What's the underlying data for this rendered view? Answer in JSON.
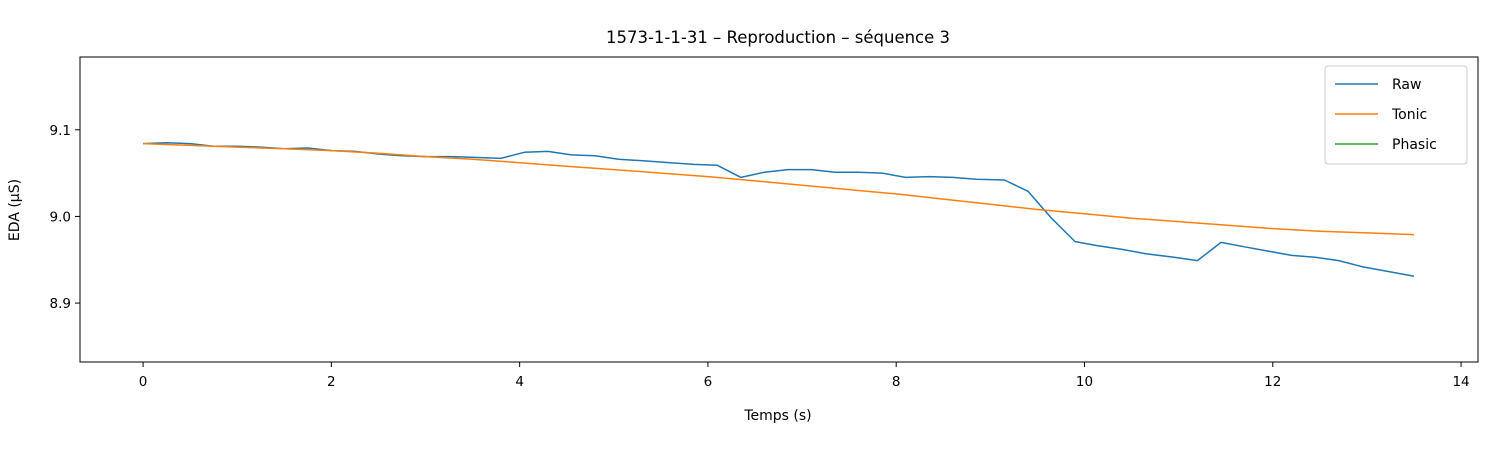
{
  "chart_data": {
    "type": "line",
    "title": "1573-1-1-31 – Reproduction – séquence 3",
    "xlabel": "Temps (s)",
    "ylabel": "EDA (µS)",
    "xlim": [
      -0.67,
      14.18
    ],
    "ylim": [
      8.832,
      9.184
    ],
    "xticks": [
      0,
      2,
      4,
      6,
      8,
      10,
      12,
      14
    ],
    "yticks": [
      8.9,
      9.0,
      9.1
    ],
    "ytick_labels": [
      "8.9",
      "9.0",
      "9.1"
    ],
    "grid": false,
    "legend_position": "top-right",
    "series": [
      {
        "name": "Raw",
        "color": "#1f77b4",
        "x": [
          0,
          0.25,
          0.5,
          0.75,
          1.0,
          1.25,
          1.5,
          1.75,
          2.0,
          2.25,
          2.5,
          2.75,
          3.0,
          3.3,
          3.55,
          3.8,
          4.05,
          4.3,
          4.55,
          4.8,
          5.05,
          5.35,
          5.6,
          5.85,
          6.1,
          6.35,
          6.6,
          6.85,
          7.1,
          7.35,
          7.6,
          7.85,
          8.1,
          8.35,
          8.6,
          8.85,
          9.15,
          9.4,
          9.65,
          9.9,
          10.15,
          10.4,
          10.65,
          10.95,
          11.2,
          11.45,
          11.7,
          11.95,
          12.2,
          12.45,
          12.7,
          12.95,
          13.25,
          13.5
        ],
        "y": [
          9.084,
          9.085,
          9.084,
          9.081,
          9.081,
          9.08,
          9.078,
          9.079,
          9.076,
          9.075,
          9.072,
          9.07,
          9.069,
          9.069,
          9.068,
          9.067,
          9.074,
          9.075,
          9.071,
          9.07,
          9.066,
          9.064,
          9.062,
          9.06,
          9.059,
          9.045,
          9.051,
          9.054,
          9.054,
          9.051,
          9.051,
          9.05,
          9.045,
          9.046,
          9.045,
          9.043,
          9.042,
          9.029,
          8.998,
          8.971,
          8.966,
          8.962,
          8.957,
          8.953,
          8.949,
          8.97,
          8.965,
          8.96,
          8.955,
          8.953,
          8.949,
          8.942,
          8.936,
          8.931
        ]
      },
      {
        "name": "Tonic",
        "color": "#ff7f0e",
        "x": [
          0,
          0.5,
          1.0,
          1.5,
          2.0,
          2.5,
          3.0,
          3.5,
          4.0,
          4.5,
          5.0,
          5.5,
          6.0,
          6.5,
          7.0,
          7.5,
          8.0,
          8.5,
          9.0,
          9.5,
          10.0,
          10.5,
          11.0,
          11.5,
          12.0,
          12.5,
          13.0,
          13.5
        ],
        "y": [
          9.084,
          9.082,
          9.08,
          9.078,
          9.076,
          9.073,
          9.069,
          9.066,
          9.062,
          9.058,
          9.054,
          9.05,
          9.046,
          9.041,
          9.036,
          9.031,
          9.026,
          9.02,
          9.014,
          9.008,
          9.003,
          8.998,
          8.994,
          8.99,
          8.986,
          8.983,
          8.981,
          8.979
        ]
      },
      {
        "name": "Phasic",
        "color": "#2ca02c",
        "x": [],
        "y": []
      }
    ]
  }
}
